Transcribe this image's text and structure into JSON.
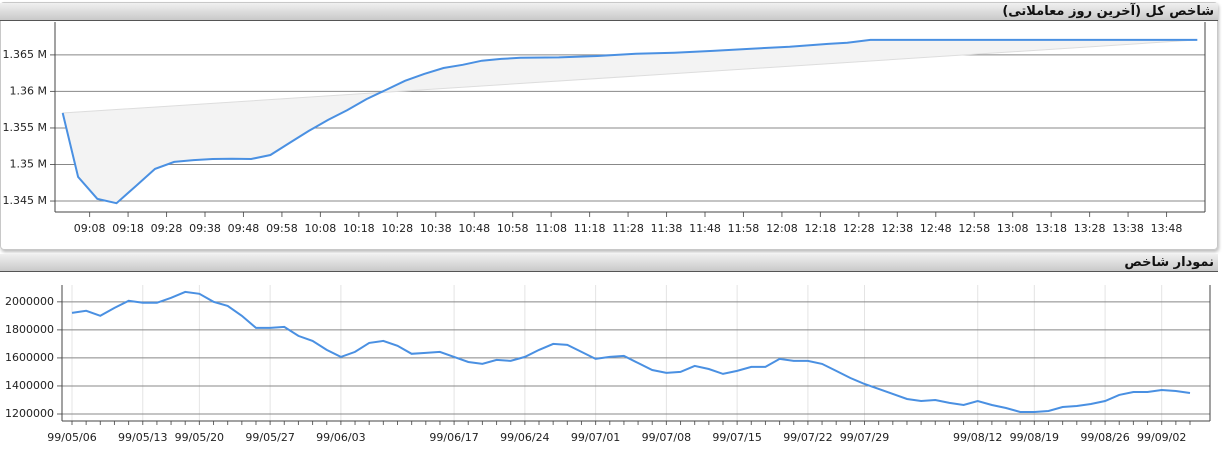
{
  "chart_data": [
    {
      "type": "line",
      "title": "شاخص کل (آخرین روز معاملاتی)",
      "color": "#4a90e2",
      "grid": true,
      "x": [
        "09:01",
        "09:05",
        "09:10",
        "09:15",
        "09:20",
        "09:25",
        "09:30",
        "09:35",
        "09:40",
        "09:45",
        "09:50",
        "09:55",
        "10:00",
        "10:05",
        "10:10",
        "10:15",
        "10:20",
        "10:25",
        "10:30",
        "10:35",
        "10:40",
        "10:45",
        "10:50",
        "10:55",
        "11:00",
        "11:10",
        "11:20",
        "11:30",
        "11:40",
        "11:50",
        "12:00",
        "12:10",
        "12:20",
        "12:25",
        "12:31",
        "13:56"
      ],
      "values": [
        1357050,
        1348300,
        1345300,
        1344700,
        1347050,
        1349400,
        1350350,
        1350600,
        1350750,
        1350800,
        1350750,
        1351300,
        1352950,
        1354600,
        1356100,
        1357450,
        1358950,
        1360200,
        1361450,
        1362400,
        1363200,
        1363650,
        1364200,
        1364450,
        1364600,
        1364650,
        1364850,
        1365150,
        1365300,
        1365550,
        1365850,
        1366100,
        1366500,
        1366650,
        1367050,
        1367050
      ],
      "xlim": [
        "08:59",
        "13:58"
      ],
      "xticks": [
        "09:08",
        "09:18",
        "09:28",
        "09:38",
        "09:48",
        "09:58",
        "10:08",
        "10:18",
        "10:28",
        "10:38",
        "10:48",
        "10:58",
        "11:08",
        "11:18",
        "11:28",
        "11:38",
        "11:48",
        "11:58",
        "12:08",
        "12:18",
        "12:28",
        "12:38",
        "12:48",
        "12:58",
        "13:08",
        "13:18",
        "13:28",
        "13:38",
        "13:48"
      ],
      "ylim": [
        1343500,
        1369500
      ],
      "yticks": [
        {
          "value": 1345000,
          "label": "1.345 M"
        },
        {
          "value": 1350000,
          "label": "1.35 M"
        },
        {
          "value": 1355000,
          "label": "1.355 M"
        },
        {
          "value": 1360000,
          "label": "1.36 M"
        },
        {
          "value": 1365000,
          "label": "1.365 M"
        }
      ]
    },
    {
      "type": "line",
      "title": "نمودار شاخص",
      "color": "#4a90e2",
      "grid": true,
      "categories": [
        "99/05/06",
        null,
        null,
        null,
        null,
        "99/05/13",
        null,
        null,
        null,
        "99/05/20",
        null,
        null,
        null,
        null,
        "99/05/27",
        null,
        null,
        null,
        null,
        "99/06/03",
        null,
        null,
        null,
        null,
        null,
        null,
        null,
        "99/06/17",
        null,
        null,
        null,
        null,
        "99/06/24",
        null,
        null,
        null,
        null,
        "99/07/01",
        null,
        null,
        null,
        null,
        "99/07/08",
        null,
        null,
        null,
        null,
        "99/07/15",
        null,
        null,
        null,
        null,
        "99/07/22",
        null,
        null,
        null,
        "99/07/29",
        null,
        null,
        null,
        null,
        null,
        null,
        null,
        "99/08/12",
        null,
        null,
        null,
        "99/08/19",
        null,
        null,
        null,
        null,
        "99/08/26",
        null,
        null,
        null,
        "99/09/02",
        null,
        null
      ],
      "values": [
        1921000,
        1936000,
        1900000,
        1957000,
        2007000,
        1993000,
        1993000,
        2029000,
        2071000,
        2057000,
        2000000,
        1971000,
        1900000,
        1814000,
        1814000,
        1821000,
        1757000,
        1721000,
        1657000,
        1607000,
        1643000,
        1707000,
        1721000,
        1686000,
        1629000,
        1636000,
        1643000,
        1607000,
        1571000,
        1557000,
        1586000,
        1579000,
        1607000,
        1657000,
        1700000,
        1693000,
        1643000,
        1593000,
        1607000,
        1614000,
        1564000,
        1514000,
        1493000,
        1500000,
        1543000,
        1521000,
        1486000,
        1507000,
        1536000,
        1536000,
        1593000,
        1579000,
        1579000,
        1557000,
        1507000,
        1457000,
        1414000,
        1379000,
        1343000,
        1307000,
        1293000,
        1300000,
        1279000,
        1264000,
        1293000,
        1264000,
        1243000,
        1214000,
        1214000,
        1221000,
        1250000,
        1257000,
        1271000,
        1293000,
        1336000,
        1357000,
        1357000,
        1371000,
        1364000,
        1350000
      ],
      "ylim": [
        1150000,
        2120000
      ],
      "yticks": [
        1200000,
        1400000,
        1600000,
        1800000,
        2000000
      ]
    }
  ]
}
